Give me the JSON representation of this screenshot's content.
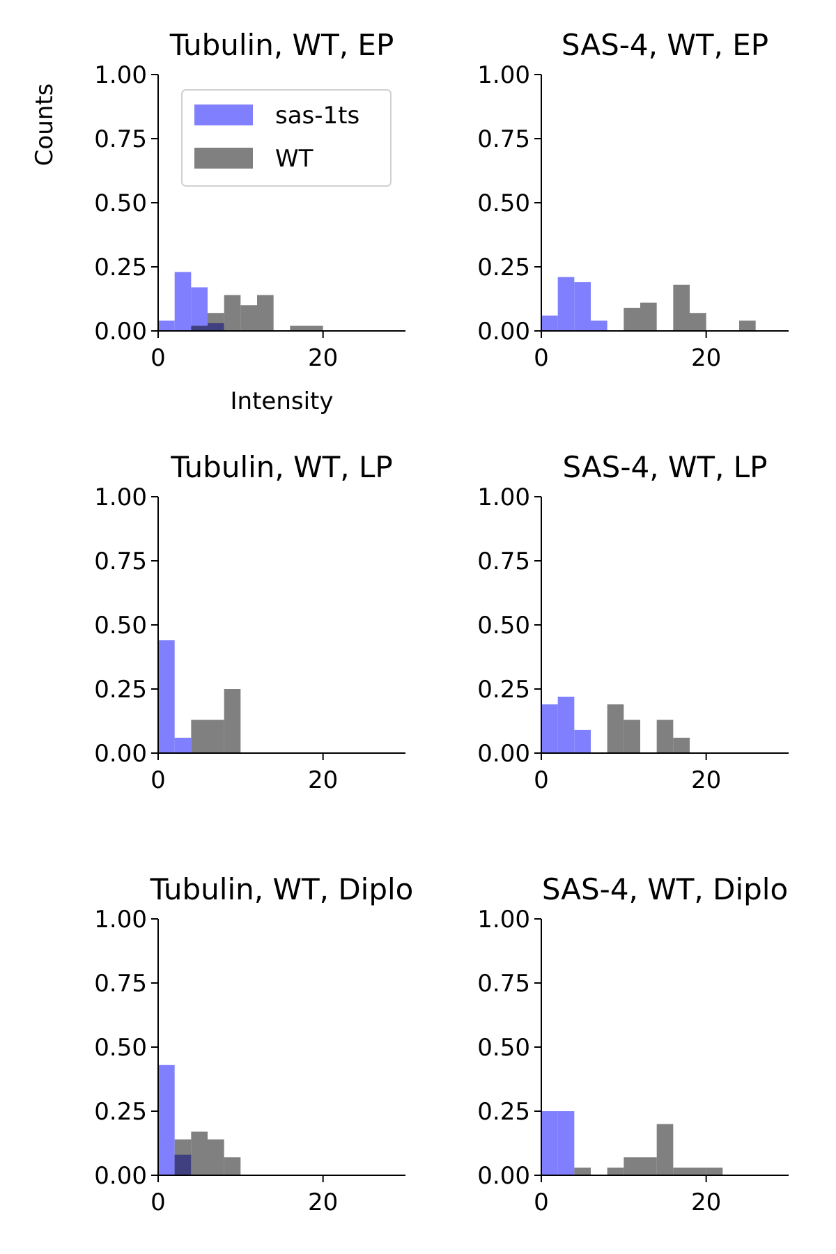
{
  "legend": [
    {
      "name": "sas-1ts",
      "color": "#8080ff"
    },
    {
      "name": "WT",
      "color": "#808080"
    }
  ],
  "overlap_color": "#404080",
  "xlabel": "Intensity",
  "ylabel": "Counts",
  "chart_data": [
    {
      "type": "bar",
      "title": "Tubulin, WT, EP",
      "xlim": [
        0,
        30
      ],
      "ylim": [
        0,
        1.0
      ],
      "xticks": [
        "0",
        "20"
      ],
      "yticks": [
        "0.00",
        "0.25",
        "0.50",
        "0.75",
        "1.00"
      ],
      "bin_edges": [
        0,
        2,
        4,
        6,
        8,
        10,
        12,
        14,
        16,
        18,
        20,
        22,
        24,
        26
      ],
      "series": [
        {
          "name": "sas-1ts",
          "values": [
            0.04,
            0.23,
            0.17,
            0.03,
            0,
            0,
            0,
            0,
            0,
            0,
            0,
            0,
            0
          ]
        },
        {
          "name": "WT",
          "values": [
            0,
            0,
            0.02,
            0.07,
            0.14,
            0.1,
            0.14,
            0,
            0.02,
            0.02,
            0,
            0,
            0
          ]
        }
      ]
    },
    {
      "type": "bar",
      "title": "SAS-4, WT, EP",
      "xlim": [
        0,
        30
      ],
      "ylim": [
        0,
        1.0
      ],
      "xticks": [
        "0",
        "20"
      ],
      "yticks": [
        "0.00",
        "0.25",
        "0.50",
        "0.75",
        "1.00"
      ],
      "bin_edges": [
        0,
        2,
        4,
        6,
        8,
        10,
        12,
        14,
        16,
        18,
        20,
        22,
        24,
        26
      ],
      "series": [
        {
          "name": "sas-1ts",
          "values": [
            0.06,
            0.21,
            0.19,
            0.04,
            0,
            0,
            0,
            0,
            0,
            0,
            0,
            0,
            0
          ]
        },
        {
          "name": "WT",
          "values": [
            0,
            0,
            0,
            0,
            0,
            0.09,
            0.11,
            0,
            0.18,
            0.07,
            0,
            0,
            0.04
          ]
        }
      ]
    },
    {
      "type": "bar",
      "title": "Tubulin, WT, LP",
      "xlim": [
        0,
        30
      ],
      "ylim": [
        0,
        1.0
      ],
      "xticks": [
        "0",
        "20"
      ],
      "yticks": [
        "0.00",
        "0.25",
        "0.50",
        "0.75",
        "1.00"
      ],
      "bin_edges": [
        0,
        2,
        4,
        6,
        8,
        10
      ],
      "series": [
        {
          "name": "sas-1ts",
          "values": [
            0.44,
            0.06,
            0,
            0,
            0
          ]
        },
        {
          "name": "WT",
          "values": [
            0,
            0,
            0.13,
            0.13,
            0.25
          ]
        }
      ]
    },
    {
      "type": "bar",
      "title": "SAS-4, WT, LP",
      "xlim": [
        0,
        30
      ],
      "ylim": [
        0,
        1.0
      ],
      "xticks": [
        "0",
        "20"
      ],
      "yticks": [
        "0.00",
        "0.25",
        "0.50",
        "0.75",
        "1.00"
      ],
      "bin_edges": [
        0,
        2,
        4,
        6,
        8,
        10,
        12,
        14,
        16,
        18
      ],
      "series": [
        {
          "name": "sas-1ts",
          "values": [
            0.19,
            0.22,
            0.09,
            0,
            0,
            0,
            0,
            0,
            0
          ]
        },
        {
          "name": "WT",
          "values": [
            0,
            0,
            0,
            0,
            0.19,
            0.13,
            0,
            0.13,
            0.06
          ]
        }
      ]
    },
    {
      "type": "bar",
      "title": "Tubulin, WT, Diplo",
      "xlim": [
        0,
        30
      ],
      "ylim": [
        0,
        1.0
      ],
      "xticks": [
        "0",
        "20"
      ],
      "yticks": [
        "0.00",
        "0.25",
        "0.50",
        "0.75",
        "1.00"
      ],
      "bin_edges": [
        0,
        2,
        4,
        6,
        8,
        10
      ],
      "series": [
        {
          "name": "sas-1ts",
          "values": [
            0.43,
            0.08,
            0,
            0,
            0
          ]
        },
        {
          "name": "WT",
          "values": [
            0,
            0.14,
            0.17,
            0.14,
            0.07
          ]
        }
      ]
    },
    {
      "type": "bar",
      "title": "SAS-4, WT, Diplo",
      "xlim": [
        0,
        30
      ],
      "ylim": [
        0,
        1.0
      ],
      "xticks": [
        "0",
        "20"
      ],
      "yticks": [
        "0.00",
        "0.25",
        "0.50",
        "0.75",
        "1.00"
      ],
      "bin_edges": [
        0,
        2,
        4,
        6,
        8,
        10,
        12,
        14,
        16,
        18,
        20,
        22
      ],
      "series": [
        {
          "name": "sas-1ts",
          "values": [
            0.25,
            0.25,
            0,
            0,
            0,
            0,
            0,
            0,
            0,
            0,
            0
          ]
        },
        {
          "name": "WT",
          "values": [
            0,
            0,
            0.03,
            0,
            0.03,
            0.07,
            0.07,
            0.2,
            0.03,
            0.03,
            0.03
          ]
        }
      ]
    }
  ]
}
